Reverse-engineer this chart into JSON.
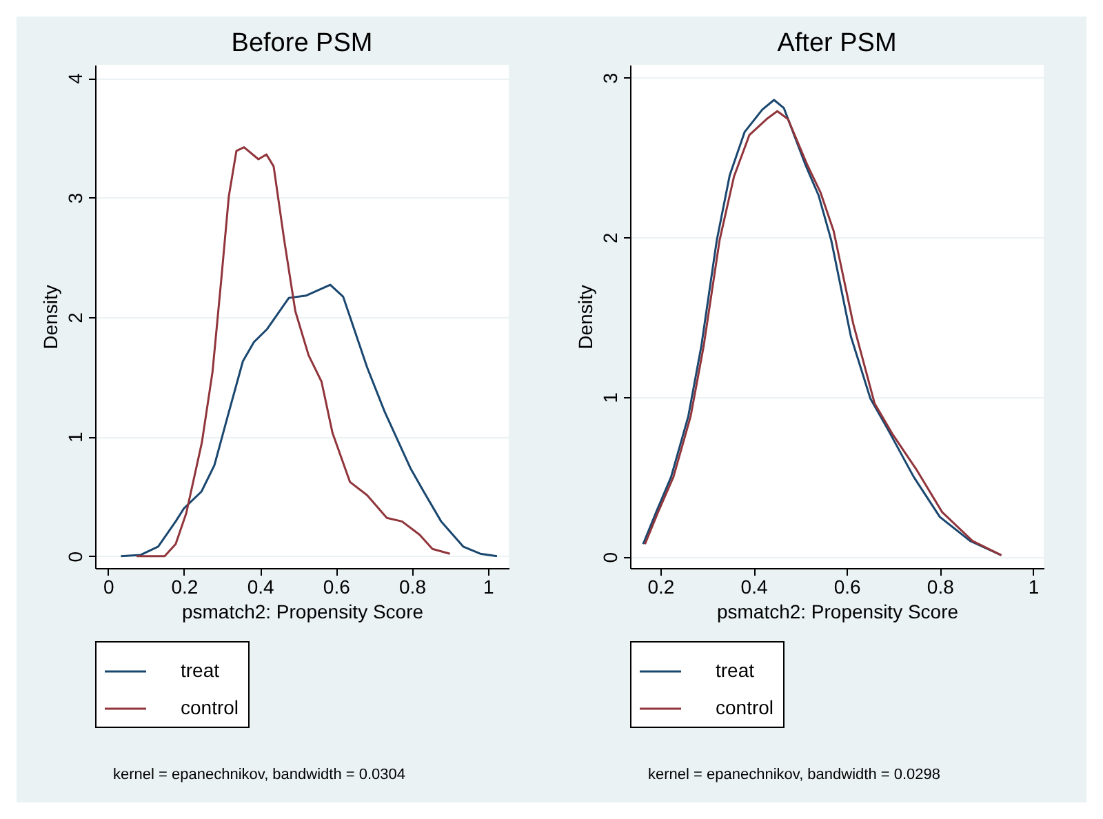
{
  "chart_data": [
    {
      "type": "line",
      "title": "Before PSM",
      "xlabel": "psmatch2: Propensity Score",
      "ylabel": "Density",
      "xlim": [
        -0.034,
        1.055
      ],
      "ylim": [
        -0.1,
        4.11
      ],
      "xticks": [
        0,
        0.2,
        0.4,
        0.6,
        0.8,
        1
      ],
      "yticks": [
        0,
        1,
        2,
        3,
        4
      ],
      "grid": "y",
      "legend": "bottom",
      "annotations": [
        "kernel = epanechnikov, bandwidth = 0.0304"
      ],
      "series": [
        {
          "name": "treat",
          "color": "#1a476f",
          "x": [
            0.034,
            0.086,
            0.132,
            0.178,
            0.2,
            0.246,
            0.28,
            0.315,
            0.355,
            0.384,
            0.419,
            0.476,
            0.522,
            0.585,
            0.619,
            0.682,
            0.728,
            0.797,
            0.831,
            0.877,
            0.935,
            0.98,
            1.024
          ],
          "values": [
            0,
            0.01,
            0.08,
            0.29,
            0.4,
            0.54,
            0.76,
            1.17,
            1.63,
            1.79,
            1.9,
            2.16,
            2.18,
            2.27,
            2.17,
            1.58,
            1.21,
            0.73,
            0.54,
            0.29,
            0.08,
            0.02,
            0
          ]
        },
        {
          "name": "control",
          "color": "#90353b",
          "x": [
            0.075,
            0.149,
            0.178,
            0.206,
            0.247,
            0.275,
            0.298,
            0.318,
            0.338,
            0.358,
            0.396,
            0.417,
            0.436,
            0.464,
            0.493,
            0.528,
            0.562,
            0.591,
            0.637,
            0.682,
            0.734,
            0.774,
            0.82,
            0.854,
            0.9
          ],
          "values": [
            0,
            0,
            0.1,
            0.36,
            0.95,
            1.54,
            2.31,
            3.01,
            3.39,
            3.42,
            3.32,
            3.36,
            3.26,
            2.64,
            2.05,
            1.68,
            1.46,
            1.03,
            0.62,
            0.51,
            0.32,
            0.29,
            0.18,
            0.06,
            0.02
          ]
        }
      ]
    },
    {
      "type": "line",
      "title": "After PSM",
      "xlabel": "psmatch2: Propensity Score",
      "ylabel": "Density",
      "xlim": [
        0.135,
        1.023
      ],
      "ylim": [
        -0.07,
        3.08
      ],
      "xticks": [
        0.2,
        0.4,
        0.6,
        0.8,
        1
      ],
      "yticks": [
        0,
        1,
        2,
        3
      ],
      "grid": "y",
      "legend": "bottom",
      "annotations": [
        "kernel = epanechnikov, bandwidth = 0.0298"
      ],
      "series": [
        {
          "name": "treat",
          "color": "#1a476f",
          "x": [
            0.163,
            0.191,
            0.223,
            0.26,
            0.288,
            0.321,
            0.349,
            0.381,
            0.419,
            0.444,
            0.465,
            0.512,
            0.54,
            0.567,
            0.609,
            0.651,
            0.688,
            0.744,
            0.8,
            0.865,
            0.932
          ],
          "values": [
            0.08,
            0.28,
            0.5,
            0.88,
            1.32,
            1.98,
            2.39,
            2.66,
            2.8,
            2.86,
            2.81,
            2.45,
            2.26,
            1.98,
            1.38,
            0.99,
            0.8,
            0.5,
            0.25,
            0.1,
            0.01
          ]
        },
        {
          "name": "control",
          "color": "#90353b",
          "x": [
            0.167,
            0.195,
            0.228,
            0.265,
            0.293,
            0.327,
            0.358,
            0.391,
            0.428,
            0.451,
            0.474,
            0.516,
            0.544,
            0.572,
            0.614,
            0.66,
            0.698,
            0.749,
            0.805,
            0.87,
            0.932
          ],
          "values": [
            0.08,
            0.28,
            0.5,
            0.88,
            1.32,
            1.98,
            2.38,
            2.64,
            2.74,
            2.79,
            2.74,
            2.45,
            2.28,
            2.04,
            1.46,
            0.96,
            0.77,
            0.55,
            0.28,
            0.1,
            0.01
          ]
        }
      ]
    }
  ]
}
